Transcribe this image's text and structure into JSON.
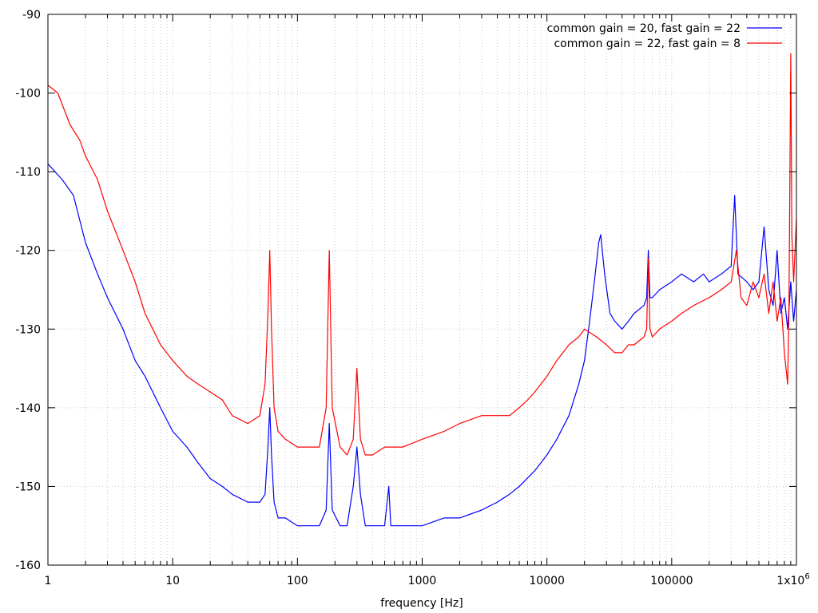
{
  "chart_data": {
    "type": "line",
    "title": "",
    "xlabel": "frequency [Hz]",
    "ylabel": "",
    "x_scale": "log",
    "xlim": [
      1,
      1000000
    ],
    "ylim": [
      -160,
      -90
    ],
    "grid": true,
    "legend_position": "top-right",
    "x_ticks": [
      {
        "value": 1,
        "label": "1"
      },
      {
        "value": 10,
        "label": "10"
      },
      {
        "value": 100,
        "label": "100"
      },
      {
        "value": 1000,
        "label": "1000"
      },
      {
        "value": 10000,
        "label": "10000"
      },
      {
        "value": 100000,
        "label": "100000"
      },
      {
        "value": 1000000,
        "label": "1x10",
        "superscript": "6"
      }
    ],
    "y_ticks": [
      {
        "value": -90,
        "label": "-90"
      },
      {
        "value": -100,
        "label": "-100"
      },
      {
        "value": -110,
        "label": "-110"
      },
      {
        "value": -120,
        "label": "-120"
      },
      {
        "value": -130,
        "label": "-130"
      },
      {
        "value": -140,
        "label": "-140"
      },
      {
        "value": -150,
        "label": "-150"
      },
      {
        "value": -160,
        "label": "-160"
      }
    ],
    "series": [
      {
        "name": "common gain = 20, fast gain = 22",
        "color": "#0000ff",
        "points": [
          [
            1,
            -109
          ],
          [
            1.3,
            -111
          ],
          [
            1.6,
            -113
          ],
          [
            2,
            -119
          ],
          [
            2.5,
            -123
          ],
          [
            3,
            -126
          ],
          [
            4,
            -130
          ],
          [
            5,
            -134
          ],
          [
            6,
            -136
          ],
          [
            8,
            -140
          ],
          [
            10,
            -143
          ],
          [
            13,
            -145
          ],
          [
            16,
            -147
          ],
          [
            20,
            -149
          ],
          [
            25,
            -150
          ],
          [
            30,
            -151
          ],
          [
            40,
            -152
          ],
          [
            50,
            -152
          ],
          [
            55,
            -151
          ],
          [
            58,
            -145
          ],
          [
            60,
            -140
          ],
          [
            62,
            -146
          ],
          [
            65,
            -152
          ],
          [
            70,
            -154
          ],
          [
            80,
            -154
          ],
          [
            100,
            -155
          ],
          [
            150,
            -155
          ],
          [
            170,
            -153
          ],
          [
            180,
            -142
          ],
          [
            190,
            -153
          ],
          [
            220,
            -155
          ],
          [
            250,
            -155
          ],
          [
            280,
            -150
          ],
          [
            300,
            -145
          ],
          [
            320,
            -151
          ],
          [
            350,
            -155
          ],
          [
            500,
            -155
          ],
          [
            540,
            -150
          ],
          [
            560,
            -155
          ],
          [
            700,
            -155
          ],
          [
            1000,
            -155
          ],
          [
            1500,
            -154
          ],
          [
            2000,
            -154
          ],
          [
            3000,
            -153
          ],
          [
            4000,
            -152
          ],
          [
            5000,
            -151
          ],
          [
            6000,
            -150
          ],
          [
            8000,
            -148
          ],
          [
            10000,
            -146
          ],
          [
            12000,
            -144
          ],
          [
            15000,
            -141
          ],
          [
            18000,
            -137
          ],
          [
            20000,
            -134
          ],
          [
            22000,
            -129
          ],
          [
            24000,
            -124
          ],
          [
            26000,
            -119
          ],
          [
            27000,
            -118
          ],
          [
            29000,
            -123
          ],
          [
            32000,
            -128
          ],
          [
            35000,
            -129
          ],
          [
            40000,
            -130
          ],
          [
            45000,
            -129
          ],
          [
            50000,
            -128
          ],
          [
            60000,
            -127
          ],
          [
            63000,
            -126
          ],
          [
            65000,
            -120
          ],
          [
            67000,
            -126
          ],
          [
            70000,
            -126
          ],
          [
            80000,
            -125
          ],
          [
            100000,
            -124
          ],
          [
            120000,
            -123
          ],
          [
            150000,
            -124
          ],
          [
            180000,
            -123
          ],
          [
            200000,
            -124
          ],
          [
            250000,
            -123
          ],
          [
            300000,
            -122
          ],
          [
            320000,
            -113
          ],
          [
            340000,
            -123
          ],
          [
            400000,
            -124
          ],
          [
            450000,
            -125
          ],
          [
            500000,
            -124
          ],
          [
            550000,
            -117
          ],
          [
            600000,
            -125
          ],
          [
            650000,
            -127
          ],
          [
            700000,
            -120
          ],
          [
            750000,
            -128
          ],
          [
            800000,
            -126
          ],
          [
            850000,
            -130
          ],
          [
            900000,
            -124
          ],
          [
            950000,
            -129
          ],
          [
            1000000,
            -125
          ]
        ]
      },
      {
        "name": "common gain = 22, fast gain = 8",
        "color": "#ff0000",
        "points": [
          [
            1,
            -99
          ],
          [
            1.2,
            -100
          ],
          [
            1.5,
            -104
          ],
          [
            1.8,
            -106
          ],
          [
            2,
            -108
          ],
          [
            2.5,
            -111
          ],
          [
            3,
            -115
          ],
          [
            4,
            -120
          ],
          [
            5,
            -124
          ],
          [
            6,
            -128
          ],
          [
            8,
            -132
          ],
          [
            10,
            -134
          ],
          [
            13,
            -136
          ],
          [
            16,
            -137
          ],
          [
            20,
            -138
          ],
          [
            25,
            -139
          ],
          [
            30,
            -141
          ],
          [
            40,
            -142
          ],
          [
            50,
            -141
          ],
          [
            55,
            -137
          ],
          [
            58,
            -128
          ],
          [
            60,
            -120
          ],
          [
            62,
            -130
          ],
          [
            65,
            -140
          ],
          [
            70,
            -143
          ],
          [
            80,
            -144
          ],
          [
            100,
            -145
          ],
          [
            130,
            -145
          ],
          [
            150,
            -145
          ],
          [
            170,
            -140
          ],
          [
            180,
            -120
          ],
          [
            190,
            -140
          ],
          [
            220,
            -145
          ],
          [
            250,
            -146
          ],
          [
            280,
            -144
          ],
          [
            300,
            -135
          ],
          [
            320,
            -144
          ],
          [
            350,
            -146
          ],
          [
            400,
            -146
          ],
          [
            500,
            -145
          ],
          [
            700,
            -145
          ],
          [
            1000,
            -144
          ],
          [
            1500,
            -143
          ],
          [
            2000,
            -142
          ],
          [
            3000,
            -141
          ],
          [
            4000,
            -141
          ],
          [
            5000,
            -141
          ],
          [
            6000,
            -140
          ],
          [
            7000,
            -139
          ],
          [
            8000,
            -138
          ],
          [
            10000,
            -136
          ],
          [
            12000,
            -134
          ],
          [
            15000,
            -132
          ],
          [
            18000,
            -131
          ],
          [
            20000,
            -130
          ],
          [
            25000,
            -131
          ],
          [
            30000,
            -132
          ],
          [
            35000,
            -133
          ],
          [
            40000,
            -133
          ],
          [
            45000,
            -132
          ],
          [
            50000,
            -132
          ],
          [
            60000,
            -131
          ],
          [
            63000,
            -130
          ],
          [
            65000,
            -121
          ],
          [
            67000,
            -130
          ],
          [
            70000,
            -131
          ],
          [
            80000,
            -130
          ],
          [
            100000,
            -129
          ],
          [
            120000,
            -128
          ],
          [
            150000,
            -127
          ],
          [
            200000,
            -126
          ],
          [
            250000,
            -125
          ],
          [
            300000,
            -124
          ],
          [
            330000,
            -120
          ],
          [
            360000,
            -126
          ],
          [
            400000,
            -127
          ],
          [
            450000,
            -124
          ],
          [
            500000,
            -126
          ],
          [
            550000,
            -123
          ],
          [
            600000,
            -128
          ],
          [
            650000,
            -124
          ],
          [
            700000,
            -129
          ],
          [
            750000,
            -126
          ],
          [
            800000,
            -133
          ],
          [
            850000,
            -137
          ],
          [
            870000,
            -128
          ],
          [
            900000,
            -95
          ],
          [
            920000,
            -118
          ],
          [
            950000,
            -124
          ],
          [
            1000000,
            -116
          ]
        ]
      }
    ]
  }
}
